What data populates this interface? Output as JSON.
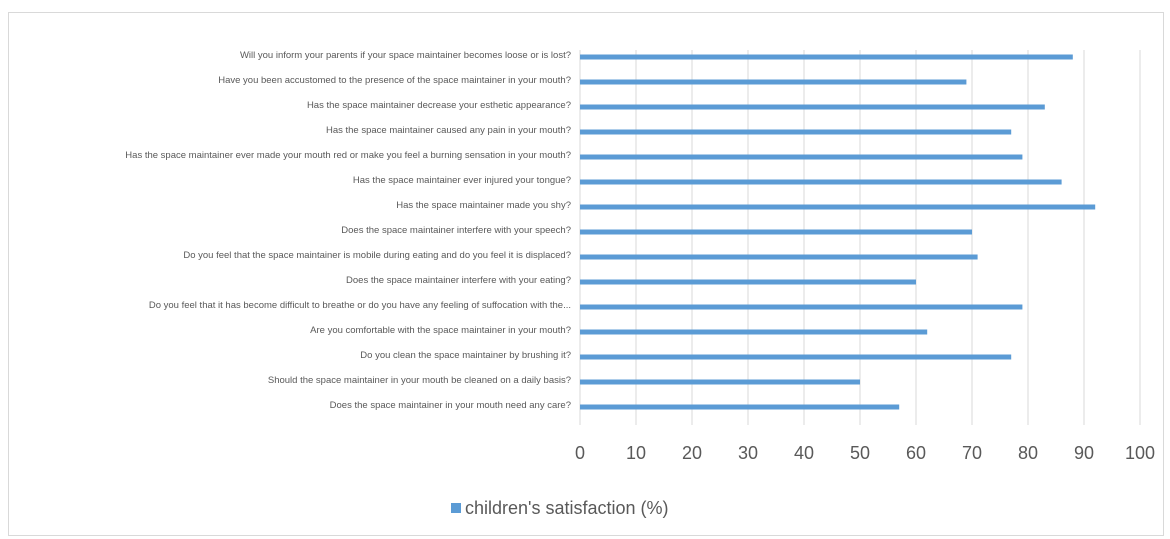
{
  "chart_data": {
    "type": "bar",
    "orientation": "horizontal",
    "categories": [
      "Will you inform your parents if your space maintainer becomes loose or is lost?",
      "Have you been accustomed to the presence of the space maintainer in your mouth?",
      "Has the space maintainer decrease your esthetic appearance?",
      "Has the space maintainer caused any pain in your mouth?",
      "Has the space maintainer ever made your mouth red or make you feel a burning sensation in your mouth?",
      "Has the space maintainer ever injured your tongue?",
      "Has the space maintainer made you shy?",
      "Does the space maintainer interfere with your speech?",
      "Do you feel that the space maintainer is mobile during eating and do you feel it is displaced?",
      "Does the space maintainer interfere with your eating?",
      "Do you feel that it has become difficult to breathe or do you have any feeling of suffocation with the...",
      "Are you comfortable with the space maintainer in your mouth?",
      "Do you clean the space maintainer by brushing it?",
      "Should the space maintainer in your mouth be cleaned on a daily basis?",
      "Does the space maintainer in your mouth need any care?"
    ],
    "series": [
      {
        "name": "children's satisfaction (%)",
        "values": [
          88,
          69,
          83,
          77,
          79,
          86,
          92,
          70,
          71,
          60,
          79,
          62,
          77,
          50,
          57
        ]
      }
    ],
    "xlim": [
      0,
      100
    ],
    "x_ticks": [
      "0",
      "10",
      "20",
      "30",
      "40",
      "50",
      "60",
      "70",
      "80",
      "90",
      "100"
    ],
    "grid": "vertical",
    "legend_position": "bottom",
    "bar_color": "#5b9bd5",
    "grid_color": "#d9d9d9",
    "text_color": "#595959"
  }
}
